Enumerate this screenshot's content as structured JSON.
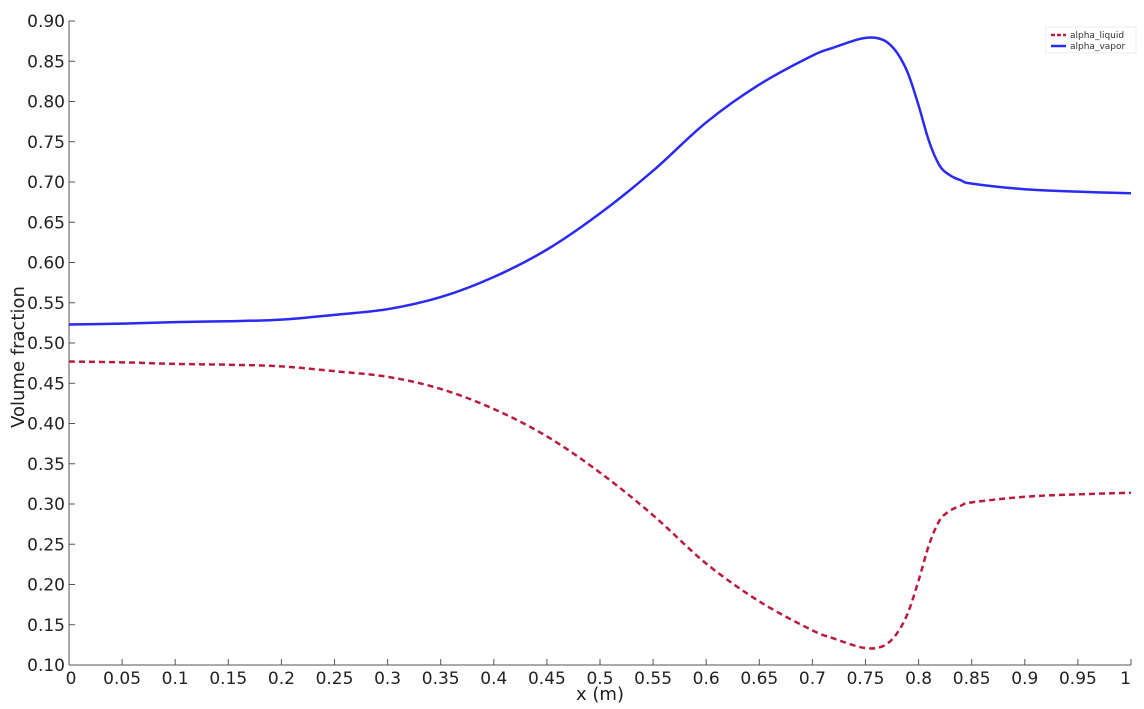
{
  "chart_data": {
    "type": "line",
    "xlabel": "x (m)",
    "ylabel": "Volume fraction",
    "xlim": [
      0,
      1
    ],
    "ylim": [
      0.1,
      0.9
    ],
    "grid": false,
    "legend_placement": "top-right",
    "x_ticks": [
      {
        "value": 0,
        "label": "0"
      },
      {
        "value": 0.05,
        "label": "0.05"
      },
      {
        "value": 0.1,
        "label": "0.1"
      },
      {
        "value": 0.15,
        "label": "0.15"
      },
      {
        "value": 0.2,
        "label": "0.2"
      },
      {
        "value": 0.25,
        "label": "0.25"
      },
      {
        "value": 0.3,
        "label": "0.3"
      },
      {
        "value": 0.35,
        "label": "0.35"
      },
      {
        "value": 0.4,
        "label": "0.4"
      },
      {
        "value": 0.45,
        "label": "0.45"
      },
      {
        "value": 0.5,
        "label": "0.5"
      },
      {
        "value": 0.55,
        "label": "0.55"
      },
      {
        "value": 0.6,
        "label": "0.6"
      },
      {
        "value": 0.65,
        "label": "0.65"
      },
      {
        "value": 0.7,
        "label": "0.7"
      },
      {
        "value": 0.75,
        "label": "0.75"
      },
      {
        "value": 0.8,
        "label": "0.8"
      },
      {
        "value": 0.85,
        "label": "0.85"
      },
      {
        "value": 0.9,
        "label": "0.9"
      },
      {
        "value": 0.95,
        "label": "0.95"
      },
      {
        "value": 1,
        "label": "1"
      }
    ],
    "y_ticks": [
      {
        "value": 0.1,
        "label": "0.10"
      },
      {
        "value": 0.15,
        "label": "0.15"
      },
      {
        "value": 0.2,
        "label": "0.20"
      },
      {
        "value": 0.25,
        "label": "0.25"
      },
      {
        "value": 0.3,
        "label": "0.30"
      },
      {
        "value": 0.35,
        "label": "0.35"
      },
      {
        "value": 0.4,
        "label": "0.40"
      },
      {
        "value": 0.45,
        "label": "0.45"
      },
      {
        "value": 0.5,
        "label": "0.50"
      },
      {
        "value": 0.55,
        "label": "0.55"
      },
      {
        "value": 0.6,
        "label": "0.60"
      },
      {
        "value": 0.65,
        "label": "0.65"
      },
      {
        "value": 0.7,
        "label": "0.70"
      },
      {
        "value": 0.75,
        "label": "0.75"
      },
      {
        "value": 0.8,
        "label": "0.80"
      },
      {
        "value": 0.85,
        "label": "0.85"
      },
      {
        "value": 0.9,
        "label": "0.90"
      }
    ],
    "series": [
      {
        "name": "alpha_liquid",
        "color": "#b81c3c",
        "dash": "dashed",
        "x": [
          0,
          0.05,
          0.1,
          0.15,
          0.2,
          0.25,
          0.3,
          0.35,
          0.4,
          0.45,
          0.5,
          0.55,
          0.6,
          0.65,
          0.7,
          0.72,
          0.74,
          0.75,
          0.76,
          0.77,
          0.78,
          0.79,
          0.8,
          0.81,
          0.82,
          0.83,
          0.84,
          0.85,
          0.9,
          0.95,
          1.0
        ],
        "y": [
          0.477,
          0.476,
          0.474,
          0.473,
          0.471,
          0.465,
          0.458,
          0.443,
          0.418,
          0.384,
          0.339,
          0.286,
          0.226,
          0.179,
          0.143,
          0.133,
          0.124,
          0.121,
          0.121,
          0.126,
          0.14,
          0.165,
          0.205,
          0.25,
          0.28,
          0.292,
          0.298,
          0.302,
          0.309,
          0.312,
          0.314
        ]
      },
      {
        "name": "alpha_vapor",
        "color": "#2a2af0",
        "dash": "solid",
        "x": [
          0,
          0.05,
          0.1,
          0.15,
          0.2,
          0.25,
          0.3,
          0.35,
          0.4,
          0.45,
          0.5,
          0.55,
          0.6,
          0.65,
          0.7,
          0.72,
          0.74,
          0.75,
          0.76,
          0.77,
          0.78,
          0.79,
          0.8,
          0.81,
          0.82,
          0.83,
          0.84,
          0.85,
          0.9,
          0.95,
          1.0
        ],
        "y": [
          0.523,
          0.524,
          0.526,
          0.527,
          0.529,
          0.535,
          0.542,
          0.557,
          0.582,
          0.616,
          0.661,
          0.714,
          0.774,
          0.821,
          0.857,
          0.867,
          0.876,
          0.879,
          0.879,
          0.874,
          0.86,
          0.835,
          0.795,
          0.75,
          0.72,
          0.708,
          0.702,
          0.698,
          0.691,
          0.688,
          0.686
        ]
      }
    ]
  }
}
